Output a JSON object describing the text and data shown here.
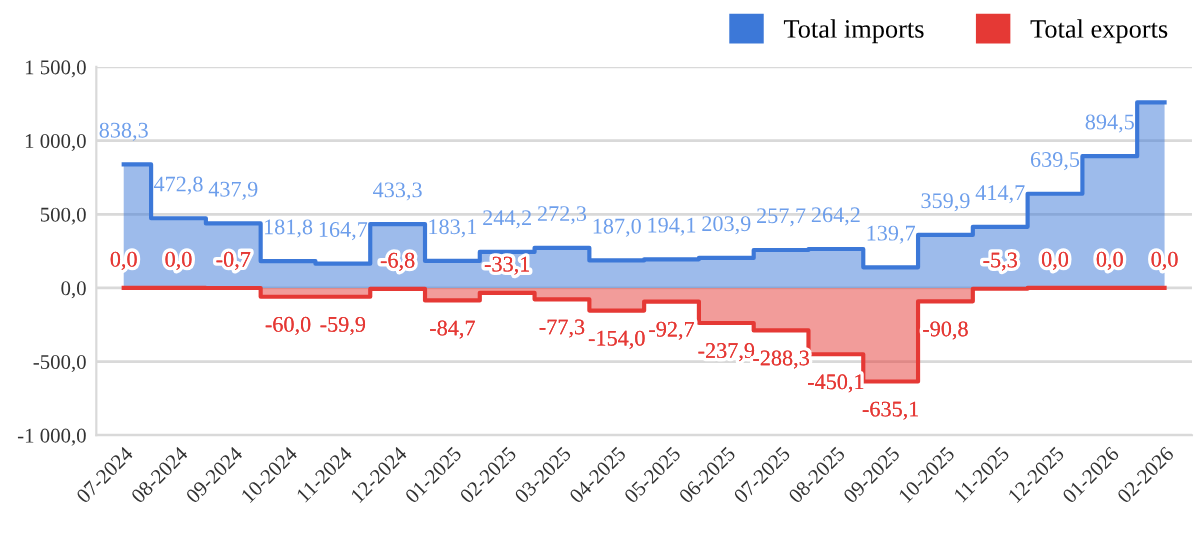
{
  "chart_data": {
    "type": "step",
    "categories": [
      "07-2024",
      "08-2024",
      "09-2024",
      "10-2024",
      "11-2024",
      "12-2024",
      "01-2025",
      "02-2025",
      "03-2025",
      "04-2025",
      "05-2025",
      "06-2025",
      "07-2025",
      "08-2025",
      "09-2025",
      "10-2025",
      "11-2025",
      "12-2025",
      "01-2026",
      "02-2026"
    ],
    "series": [
      {
        "name": "Total imports",
        "color": "#3c78d8",
        "values": [
          838.3,
          472.8,
          437.9,
          181.8,
          164.7,
          433.3,
          183.1,
          244.2,
          272.3,
          187.0,
          194.1,
          203.9,
          257.7,
          264.2,
          139.7,
          359.9,
          414.7,
          639.5,
          894.5,
          1260
        ],
        "value_labels": [
          "838,3",
          "472,8",
          "437,9",
          "181,8",
          "164,7",
          "433,3",
          "183,1",
          "244,2",
          "272,3",
          "187,0",
          "194,1",
          "203,9",
          "257,7",
          "264,2",
          "139,7",
          "359,9",
          "414,7",
          "639,5",
          "894,5",
          null
        ]
      },
      {
        "name": "Total exports",
        "color": "#e53935",
        "values": [
          0.0,
          0.0,
          -0.7,
          -60.0,
          -59.9,
          -6.8,
          -84.7,
          -33.1,
          -77.3,
          -154.0,
          -92.7,
          -237.9,
          -288.3,
          -450.1,
          -635.1,
          -90.8,
          -5.3,
          0.0,
          0.0,
          0.0
        ],
        "value_labels": [
          "0,0",
          "0,0",
          "-0,7",
          "-60,0",
          "-59,9",
          "-6,8",
          "-84,7",
          "-33,1",
          "-77,3",
          "-154,0",
          "-92,7",
          "-237,9",
          "-288,3",
          "-450,1",
          "-635,1",
          "-90,8",
          "-5,3",
          "0,0",
          "0,0",
          "0,0"
        ]
      }
    ],
    "ylim": [
      -1000,
      1500
    ],
    "yticks": [
      {
        "value": -1000,
        "label": "-1 000,0"
      },
      {
        "value": -500,
        "label": "-500,0"
      },
      {
        "value": 0,
        "label": "0,0"
      },
      {
        "value": 500,
        "label": "500,0"
      },
      {
        "value": 1000,
        "label": "1 000,0"
      },
      {
        "value": 1500,
        "label": "1 500,0"
      }
    ],
    "grid": "y",
    "legend": "top right"
  }
}
